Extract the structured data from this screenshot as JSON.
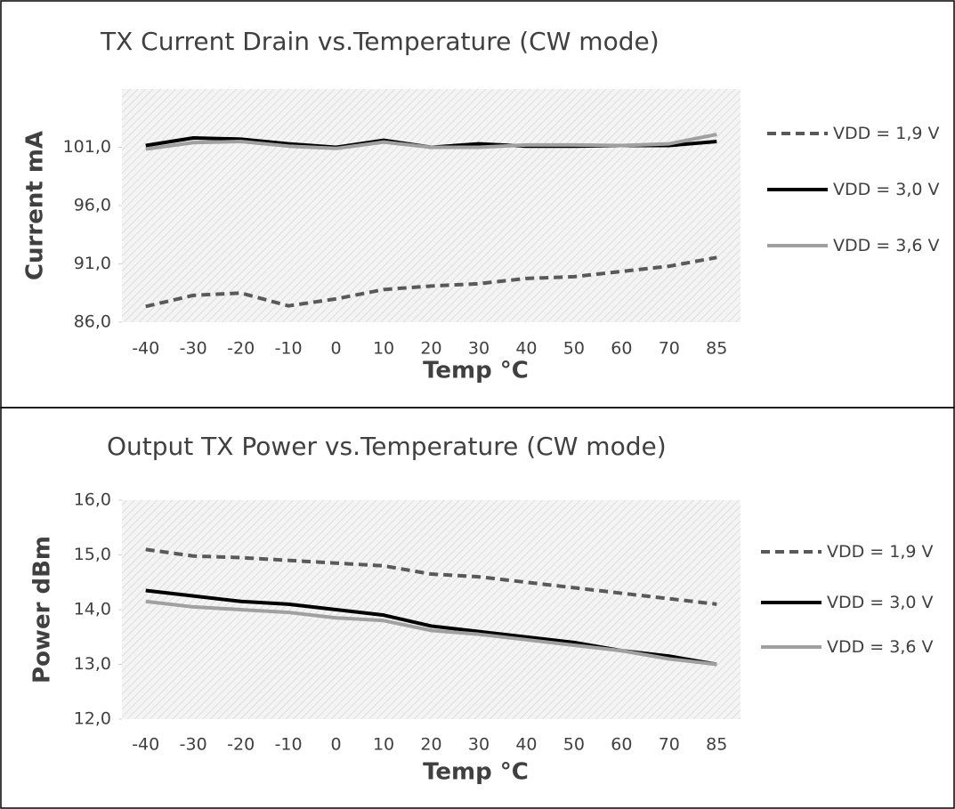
{
  "chart_data": [
    {
      "type": "line",
      "title": "TX Current Drain vs.Temperature (CW mode)",
      "x_label": "Temp °C",
      "y_label": "Current mA",
      "categories": [
        "-40",
        "-30",
        "-20",
        "-10",
        "0",
        "10",
        "20",
        "30",
        "40",
        "50",
        "60",
        "70",
        "85"
      ],
      "ylim": [
        86,
        106
      ],
      "yticks": [
        {
          "value": 86,
          "label": "86,0"
        },
        {
          "value": 91,
          "label": "91,0"
        },
        {
          "value": 96,
          "label": "96,0"
        },
        {
          "value": 101,
          "label": "101,0"
        }
      ],
      "legend": "right",
      "series": [
        {
          "name": "VDD = 1,9 V",
          "color": "#595959",
          "dash": "dashed",
          "values": [
            87.35,
            88.3,
            88.5,
            87.4,
            88.0,
            88.8,
            89.1,
            89.3,
            89.75,
            89.9,
            90.35,
            90.8,
            91.55
          ]
        },
        {
          "name": "VDD = 3,0 V",
          "color": "#000000",
          "dash": "solid",
          "values": [
            101.15,
            101.8,
            101.7,
            101.3,
            101.0,
            101.6,
            101.0,
            101.3,
            101.1,
            101.1,
            101.15,
            101.15,
            101.5
          ]
        },
        {
          "name": "VDD = 3,6 V",
          "color": "#a0a0a0",
          "dash": "solid",
          "values": [
            100.85,
            101.4,
            101.5,
            101.1,
            100.9,
            101.45,
            101.0,
            101.0,
            101.2,
            101.2,
            101.15,
            101.3,
            102.1
          ]
        }
      ]
    },
    {
      "type": "line",
      "title": "Output TX Power vs.Temperature (CW mode)",
      "x_label": "Temp °C",
      "y_label": "Power dBm",
      "categories": [
        "-40",
        "-30",
        "-20",
        "-10",
        "0",
        "10",
        "20",
        "30",
        "40",
        "50",
        "60",
        "70",
        "85"
      ],
      "ylim": [
        12,
        16
      ],
      "yticks": [
        {
          "value": 12,
          "label": "12,0"
        },
        {
          "value": 13,
          "label": "13,0"
        },
        {
          "value": 14,
          "label": "14,0"
        },
        {
          "value": 15,
          "label": "15,0"
        },
        {
          "value": 16,
          "label": "16,0"
        }
      ],
      "legend": "right",
      "series": [
        {
          "name": "VDD = 1,9 V",
          "color": "#595959",
          "dash": "dashed",
          "values": [
            15.1,
            14.98,
            14.95,
            14.9,
            14.85,
            14.8,
            14.65,
            14.6,
            14.5,
            14.4,
            14.3,
            14.2,
            14.1
          ]
        },
        {
          "name": "VDD = 3,0 V",
          "color": "#000000",
          "dash": "solid",
          "values": [
            14.35,
            14.25,
            14.15,
            14.1,
            14.0,
            13.9,
            13.7,
            13.6,
            13.5,
            13.4,
            13.25,
            13.15,
            13.0
          ]
        },
        {
          "name": "VDD = 3,6 V",
          "color": "#a0a0a0",
          "dash": "solid",
          "values": [
            14.15,
            14.05,
            14.0,
            13.95,
            13.85,
            13.8,
            13.62,
            13.55,
            13.45,
            13.35,
            13.25,
            13.1,
            13.0
          ]
        }
      ]
    }
  ]
}
